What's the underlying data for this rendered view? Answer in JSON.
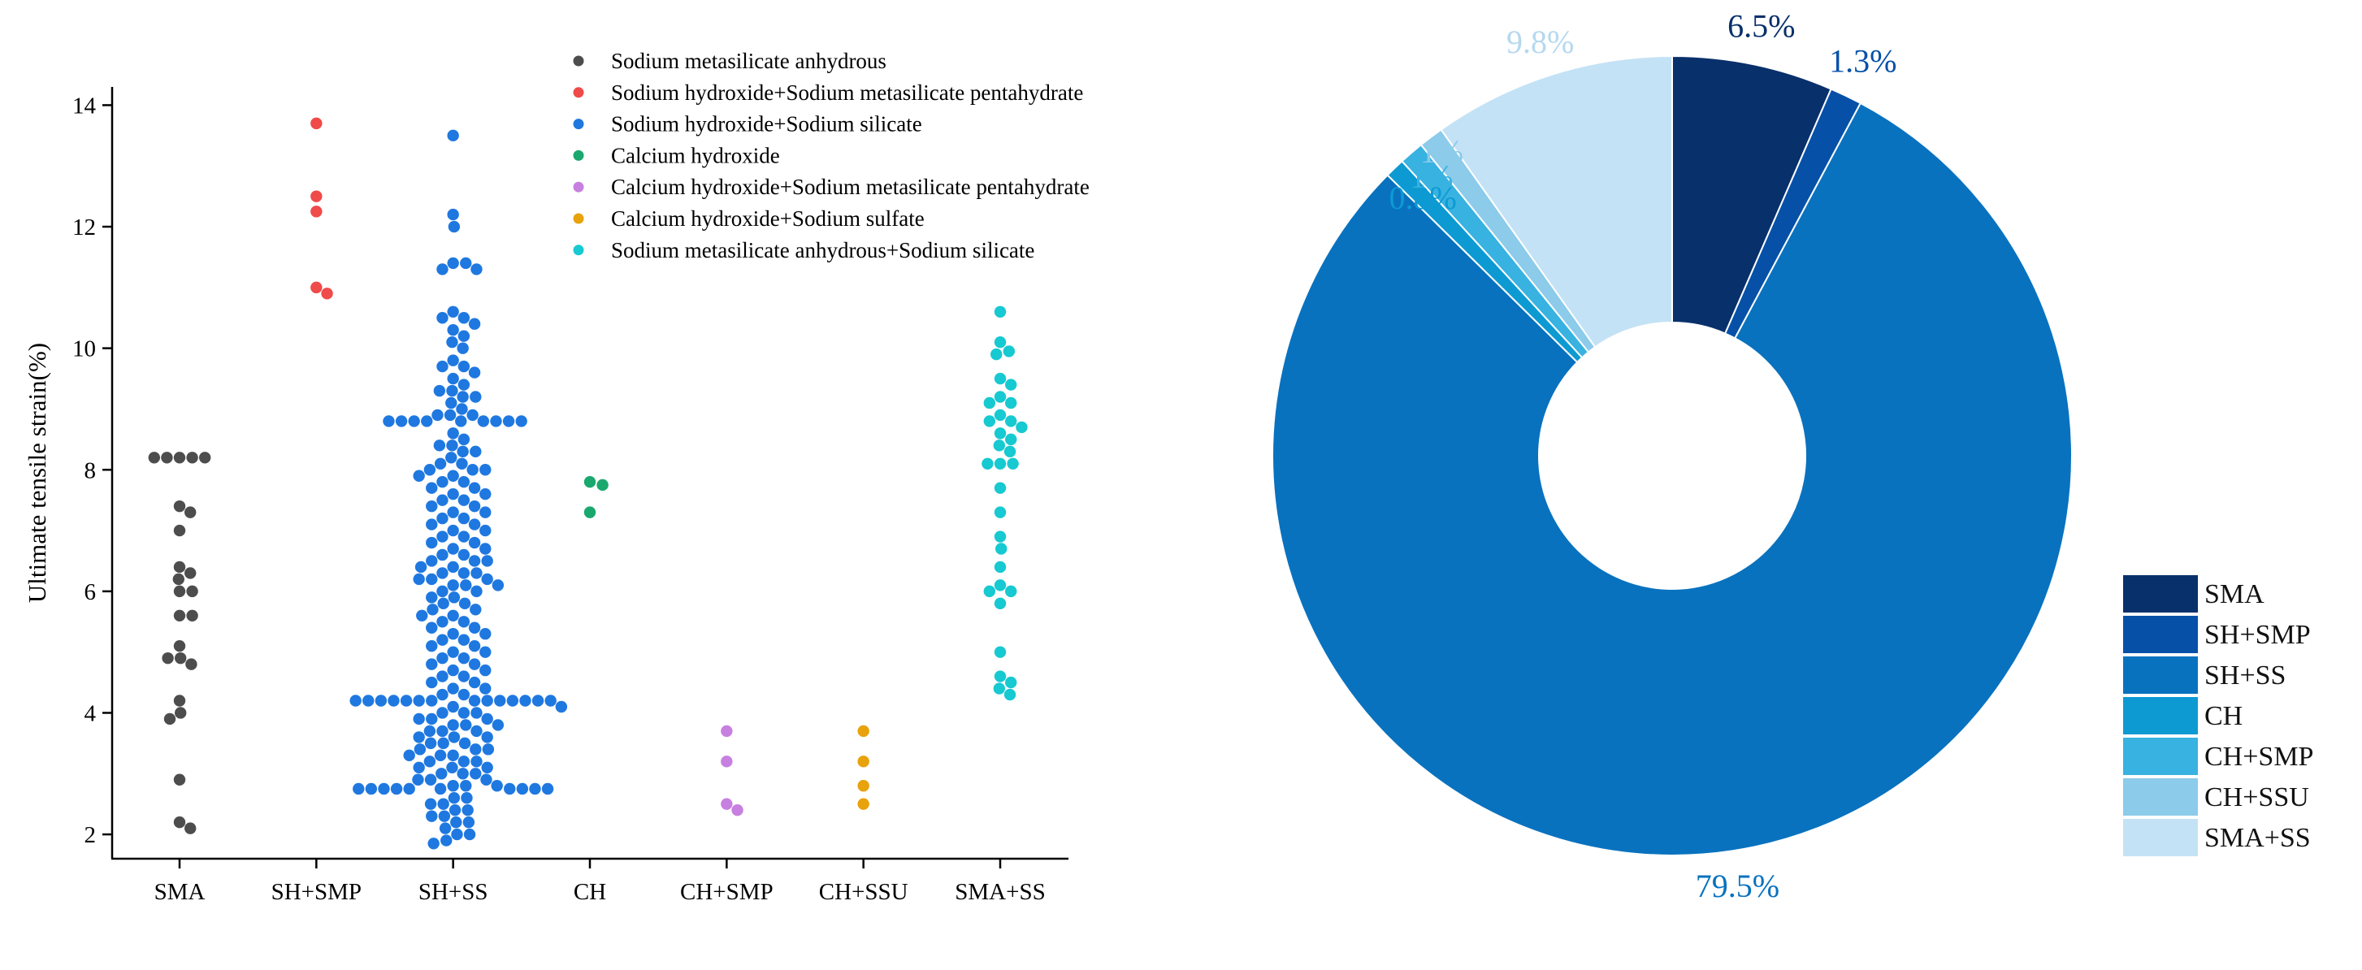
{
  "chart_data": [
    {
      "type": "scatter",
      "subtype": "swarm",
      "title": "",
      "xlabel": "",
      "ylabel": "Ultimate tensile strain(%)",
      "ylim": [
        1.6,
        14.3
      ],
      "yticks": [
        2,
        4,
        6,
        8,
        10,
        12,
        14
      ],
      "categories": [
        "SMA",
        "SH+SMP",
        "SH+SS",
        "CH",
        "CH+SMP",
        "CH+SSU",
        "SMA+SS"
      ],
      "legend_position": "top-center",
      "series": [
        {
          "name": "Sodium metasilicate anhydrous",
          "category": "SMA",
          "color": "#4d4d4d",
          "values": [
            8.2,
            8.2,
            8.2,
            8.2,
            8.2,
            7.4,
            7.3,
            7.0,
            6.4,
            6.3,
            6.2,
            6.0,
            6.0,
            5.6,
            5.6,
            5.1,
            4.9,
            4.9,
            4.8,
            4.2,
            4.0,
            3.9,
            2.9,
            2.2,
            2.1
          ]
        },
        {
          "name": "Sodium hydroxide+Sodium metasilicate pentahydrate",
          "category": "SH+SMP",
          "color": "#f04a4a",
          "values": [
            13.7,
            12.5,
            12.25,
            11.0,
            10.9
          ]
        },
        {
          "name": "Sodium hydroxide+Sodium silicate",
          "category": "SH+SS",
          "color": "#1f78e0",
          "values": [
            13.5,
            12.2,
            12.0,
            11.4,
            11.4,
            11.3,
            11.3,
            10.6,
            10.5,
            10.5,
            10.4,
            10.3,
            10.2,
            10.1,
            10.0,
            9.8,
            9.7,
            9.7,
            9.6,
            9.5,
            9.4,
            9.3,
            9.3,
            9.2,
            9.2,
            9.1,
            9.0,
            8.9,
            8.9,
            8.9,
            8.8,
            8.8,
            8.8,
            8.8,
            8.8,
            8.8,
            8.8,
            8.8,
            8.8,
            8.6,
            8.5,
            8.4,
            8.4,
            8.3,
            8.3,
            8.2,
            8.1,
            8.1,
            8.0,
            8.0,
            8.0,
            7.9,
            7.9,
            7.8,
            7.8,
            7.7,
            7.7,
            7.6,
            7.6,
            7.5,
            7.5,
            7.4,
            7.4,
            7.3,
            7.3,
            7.2,
            7.2,
            7.1,
            7.1,
            7.0,
            7.0,
            6.9,
            6.9,
            6.8,
            6.8,
            6.7,
            6.7,
            6.6,
            6.6,
            6.5,
            6.5,
            6.5,
            6.4,
            6.4,
            6.3,
            6.3,
            6.3,
            6.2,
            6.2,
            6.2,
            6.1,
            6.1,
            6.1,
            6.0,
            6.0,
            5.9,
            5.9,
            5.8,
            5.8,
            5.7,
            5.7,
            5.6,
            5.6,
            5.5,
            5.5,
            5.4,
            5.4,
            5.3,
            5.3,
            5.2,
            5.2,
            5.1,
            5.1,
            5.0,
            5.0,
            4.9,
            4.9,
            4.8,
            4.8,
            4.7,
            4.7,
            4.6,
            4.6,
            4.5,
            4.5,
            4.4,
            4.4,
            4.3,
            4.3,
            4.2,
            4.2,
            4.2,
            4.2,
            4.2,
            4.2,
            4.2,
            4.2,
            4.2,
            4.2,
            4.2,
            4.2,
            4.2,
            4.2,
            4.1,
            4.1,
            4.0,
            4.0,
            4.0,
            3.9,
            3.9,
            3.9,
            3.8,
            3.8,
            3.8,
            3.7,
            3.7,
            3.7,
            3.6,
            3.6,
            3.6,
            3.5,
            3.5,
            3.5,
            3.4,
            3.4,
            3.4,
            3.3,
            3.3,
            3.3,
            3.2,
            3.2,
            3.2,
            3.1,
            3.1,
            3.1,
            3.0,
            3.0,
            3.0,
            2.9,
            2.9,
            2.9,
            2.8,
            2.8,
            2.8,
            2.75,
            2.75,
            2.75,
            2.75,
            2.75,
            2.75,
            2.75,
            2.75,
            2.75,
            2.75,
            2.6,
            2.6,
            2.5,
            2.5,
            2.4,
            2.4,
            2.3,
            2.3,
            2.2,
            2.2,
            2.1,
            2.0,
            2.0,
            1.9,
            1.85
          ]
        },
        {
          "name": "Calcium hydroxide",
          "category": "CH",
          "color": "#1aa86e",
          "values": [
            7.8,
            7.75,
            7.3
          ]
        },
        {
          "name": "Calcium hydroxide+Sodium metasilicate pentahydrate",
          "category": "CH+SMP",
          "color": "#c77fe0",
          "values": [
            3.7,
            3.2,
            2.5,
            2.4
          ]
        },
        {
          "name": "Calcium hydroxide+Sodium sulfate",
          "category": "CH+SSU",
          "color": "#e8a20c",
          "values": [
            3.7,
            3.2,
            2.8,
            2.5
          ]
        },
        {
          "name": "Sodium metasilicate anhydrous+Sodium silicate",
          "category": "SMA+SS",
          "color": "#17c9d1",
          "values": [
            10.6,
            10.1,
            9.95,
            9.9,
            9.5,
            9.4,
            9.2,
            9.1,
            9.1,
            8.9,
            8.8,
            8.8,
            8.7,
            8.6,
            8.5,
            8.4,
            8.3,
            8.1,
            8.1,
            8.1,
            7.7,
            7.3,
            6.9,
            6.7,
            6.4,
            6.1,
            6.0,
            6.0,
            5.8,
            5.0,
            4.6,
            4.5,
            4.4,
            4.3
          ]
        }
      ]
    },
    {
      "type": "pie",
      "subtype": "donut",
      "title": "",
      "legend_position": "bottom-right",
      "labels": [
        "SMA",
        "SH+SMP",
        "SH+SS",
        "CH",
        "CH+SMP",
        "CH+SSU",
        "SMA+SS"
      ],
      "values": [
        6.5,
        1.3,
        79.5,
        0.8,
        1,
        1,
        9.8
      ],
      "display_labels": [
        "6.5%",
        "1.3%",
        "79.5%",
        "0.8%",
        "1%",
        "1%",
        "9.8%"
      ],
      "colors": [
        "#08306b",
        "#0650a8",
        "#0872bf",
        "#0d9ad3",
        "#38b2e0",
        "#8ccbea",
        "#c4e2f5"
      ],
      "label_colors": [
        "#08306b",
        "#0650a8",
        "#0872bf",
        "#0d9ad3",
        "#38b2e0",
        "#8ccbea",
        "#b5d8ef"
      ]
    }
  ]
}
